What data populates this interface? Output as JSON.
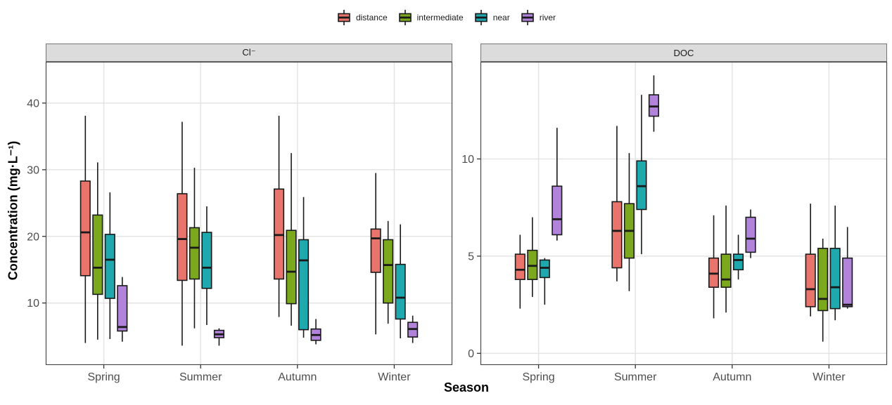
{
  "chart_data": {
    "type": "boxplot",
    "title": "",
    "xlabel": "Season",
    "ylabel": "Concentration (mg·L⁻¹)",
    "legend_position": "top",
    "grid": "major-only",
    "categories": [
      "Spring",
      "Summer",
      "Autumn",
      "Winter"
    ],
    "series": [
      {
        "name": "distance",
        "color": "#E8746B"
      },
      {
        "name": "intermediate",
        "color": "#7CA81E"
      },
      {
        "name": "near",
        "color": "#1FA8AD"
      },
      {
        "name": "river",
        "color": "#B183DB"
      }
    ],
    "box_stats_format": [
      "whisker_low",
      "q1",
      "median",
      "q3",
      "whisker_high"
    ],
    "panels": [
      {
        "title": "Cl⁻",
        "ylim": [
          0.7,
          46.2
        ],
        "yticks": [
          10,
          20,
          30,
          40
        ],
        "boxes": [
          [
            [
              4.0,
              14.1,
              20.6,
              28.3,
              38.1
            ],
            [
              4.5,
              11.3,
              15.3,
              23.2,
              31.1
            ],
            [
              4.6,
              10.7,
              16.5,
              20.3,
              26.6
            ],
            [
              4.2,
              5.8,
              6.4,
              12.6,
              13.9
            ]
          ],
          [
            [
              3.6,
              13.4,
              19.6,
              26.4,
              37.2
            ],
            [
              6.2,
              13.6,
              18.3,
              21.3,
              30.3
            ],
            [
              6.7,
              12.2,
              15.3,
              20.6,
              24.5
            ],
            [
              3.6,
              4.8,
              5.3,
              5.9,
              6.2
            ]
          ],
          [
            [
              7.9,
              13.6,
              20.2,
              27.1,
              38.1
            ],
            [
              6.6,
              9.9,
              14.7,
              20.9,
              32.5
            ],
            [
              4.8,
              6.0,
              16.4,
              19.5,
              25.9
            ],
            [
              3.8,
              4.4,
              5.2,
              6.1,
              7.6
            ]
          ],
          [
            [
              5.3,
              14.6,
              19.7,
              21.1,
              29.5
            ],
            [
              6.9,
              10.0,
              15.7,
              19.5,
              22.3
            ],
            [
              4.7,
              7.6,
              10.8,
              15.8,
              21.8
            ],
            [
              4.0,
              4.9,
              6.1,
              7.1,
              8.1
            ]
          ]
        ]
      },
      {
        "title": "DOC",
        "ylim": [
          -0.6,
          15.0
        ],
        "yticks": [
          0,
          5,
          10
        ],
        "boxes": [
          [
            [
              2.3,
              3.8,
              4.3,
              5.1,
              6.1
            ],
            [
              2.9,
              3.8,
              4.5,
              5.3,
              7.0
            ],
            [
              2.5,
              3.9,
              4.4,
              4.8,
              4.9
            ],
            [
              5.8,
              6.1,
              6.9,
              8.6,
              11.6
            ]
          ],
          [
            [
              3.7,
              4.4,
              6.3,
              7.8,
              11.7
            ],
            [
              3.2,
              4.9,
              6.3,
              7.7,
              10.3
            ],
            [
              5.1,
              7.4,
              8.6,
              9.9,
              13.3
            ],
            [
              11.4,
              12.2,
              12.7,
              13.3,
              14.3
            ]
          ],
          [
            [
              1.8,
              3.4,
              4.1,
              4.9,
              7.1
            ],
            [
              2.1,
              3.4,
              3.8,
              5.1,
              7.6
            ],
            [
              3.8,
              4.3,
              4.8,
              5.1,
              6.1
            ],
            [
              4.9,
              5.2,
              5.9,
              7.0,
              7.4
            ]
          ],
          [
            [
              1.9,
              2.4,
              3.3,
              5.1,
              7.7
            ],
            [
              0.6,
              2.2,
              2.8,
              5.4,
              5.9
            ],
            [
              1.7,
              2.3,
              3.4,
              5.4,
              7.6
            ],
            [
              2.3,
              2.4,
              2.5,
              4.9,
              6.5
            ]
          ]
        ]
      }
    ]
  }
}
